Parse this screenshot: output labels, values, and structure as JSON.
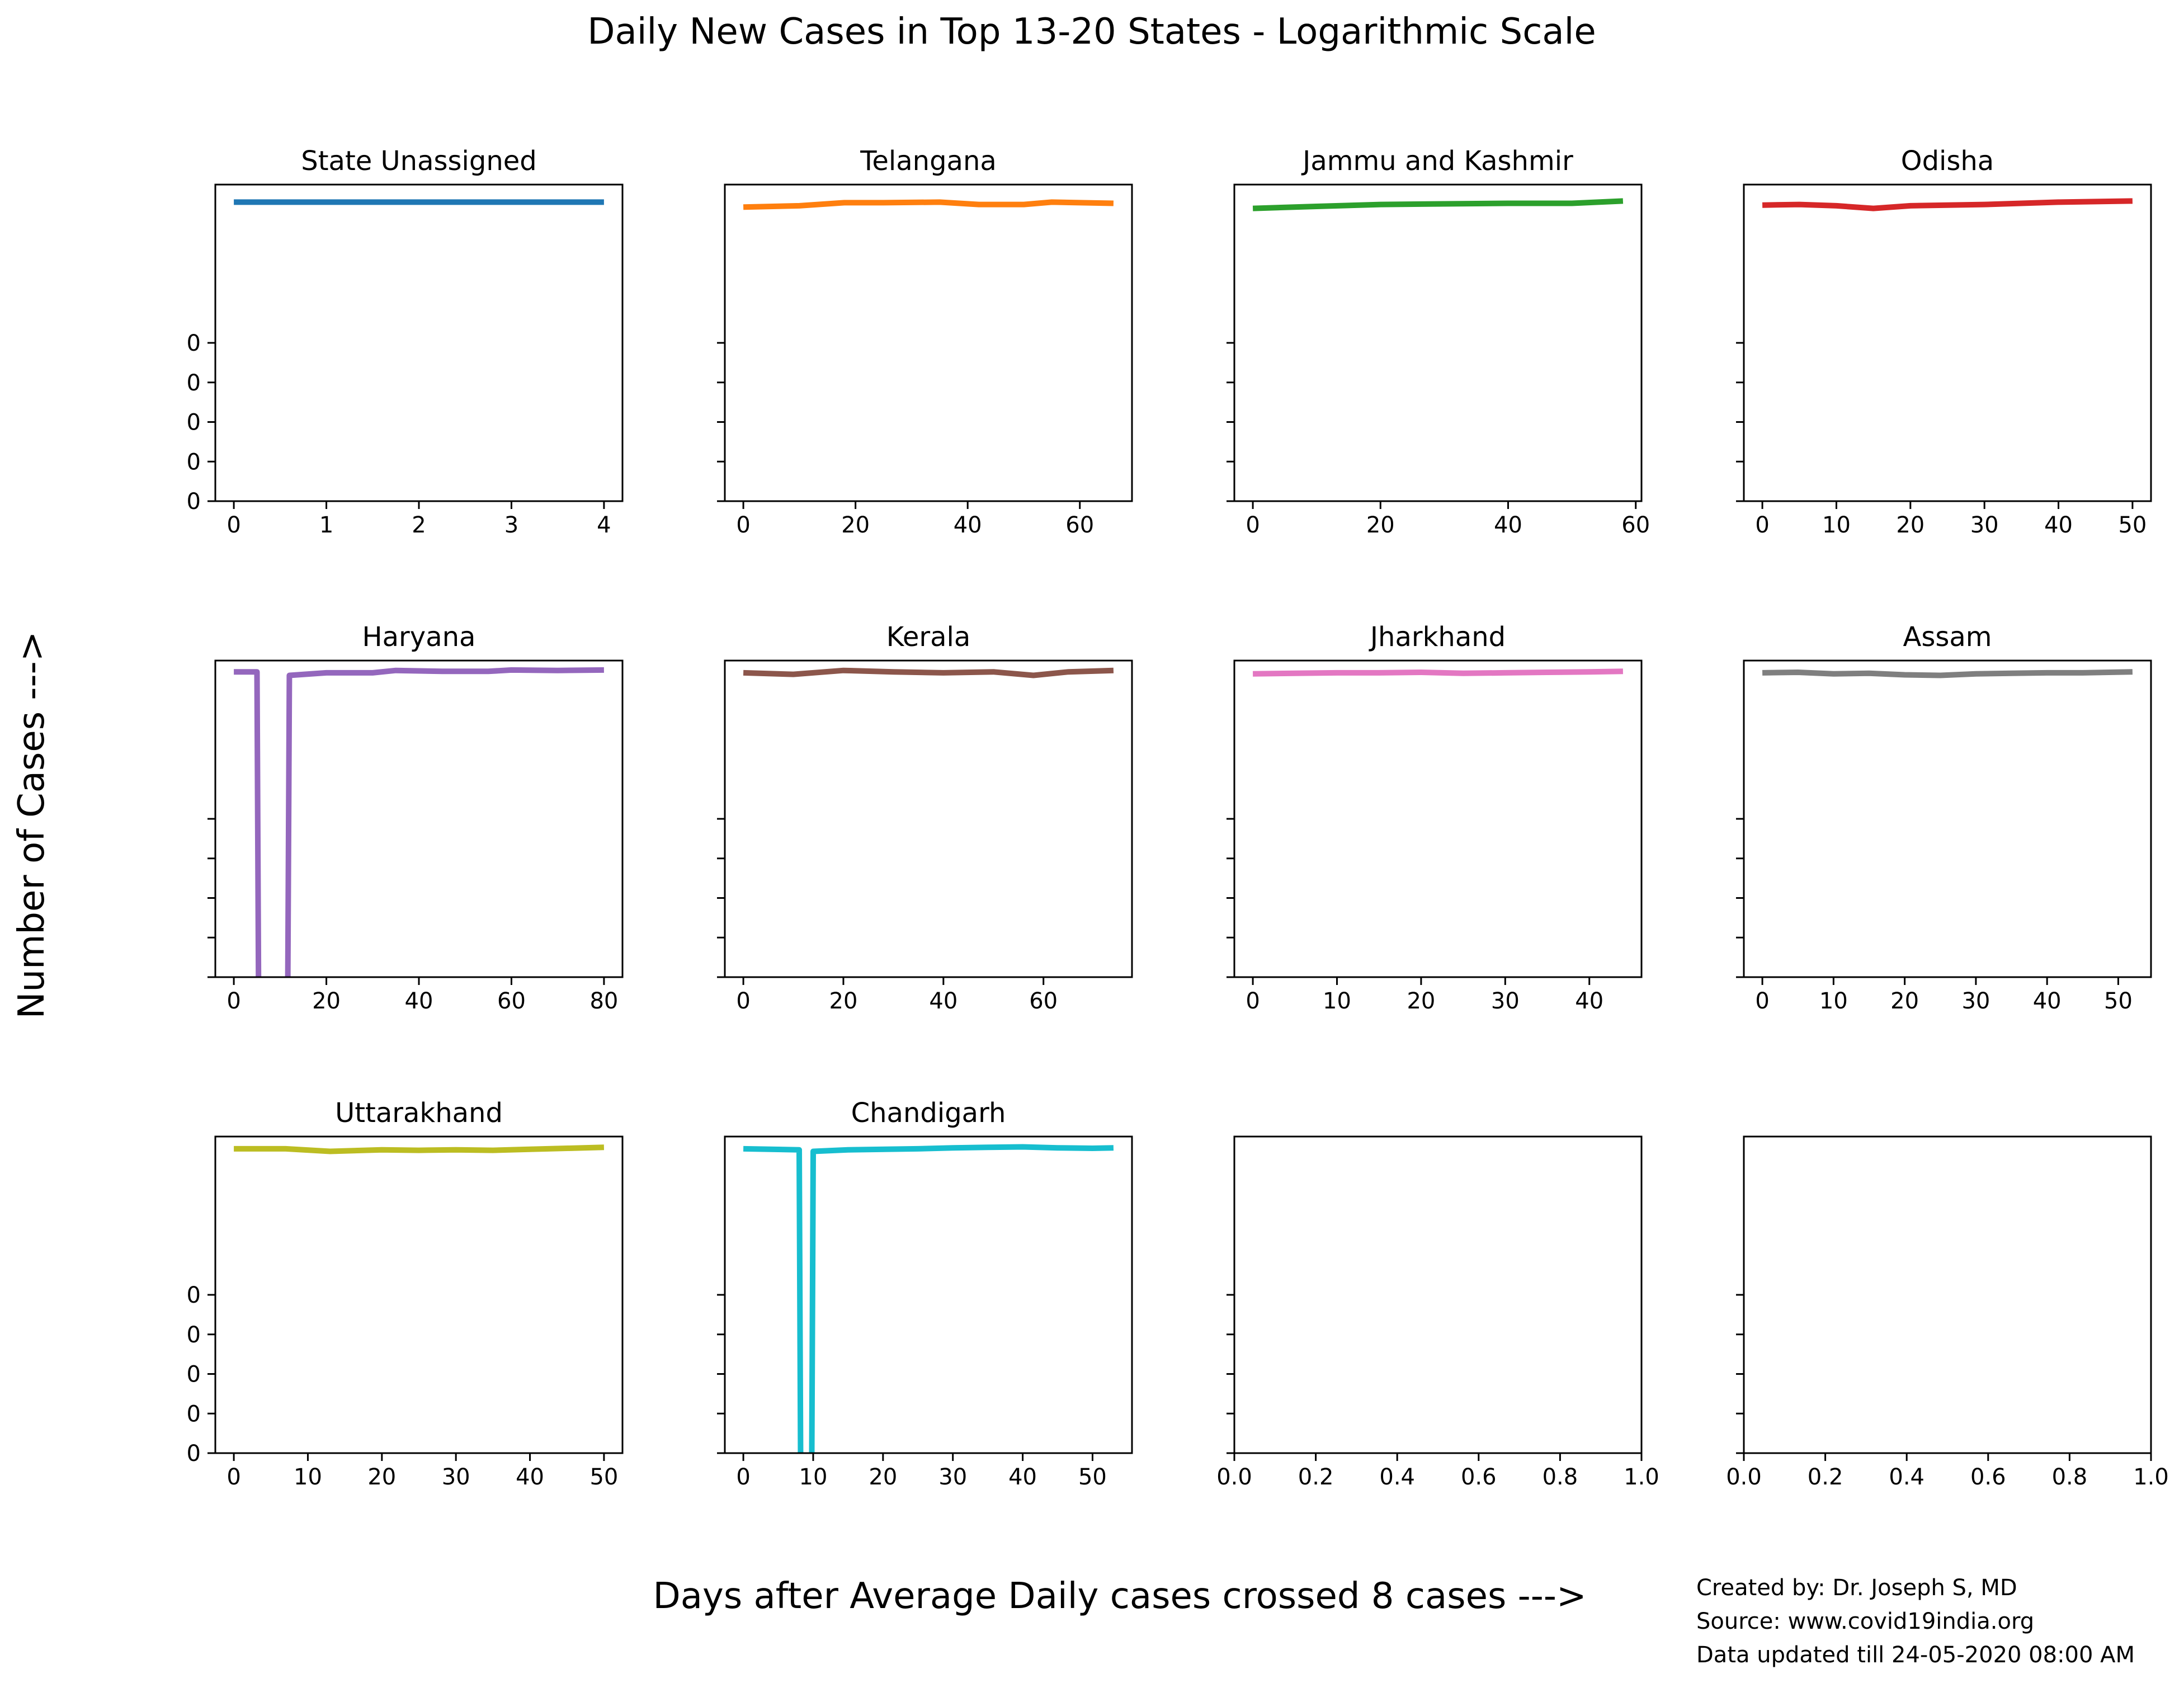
{
  "title": "Daily New Cases in Top 13-20 States - Logarithmic Scale",
  "xlabel": "Days after Average Daily cases crossed 8 cases --->",
  "ylabel": "Number of Cases --->",
  "credits": [
    "Created by: Dr. Joseph S, MD",
    "Source: www.covid19india.org",
    "Data updated till 24-05-2020 08:00 AM"
  ],
  "chart_data": [
    {
      "type": "line",
      "title": "State Unassigned",
      "color": "#1f77b4",
      "y_scale": "log",
      "shared_y": true,
      "ylim": [
        0.1,
        1000
      ],
      "y_tick_labels": [
        "0",
        "0",
        "0",
        "0",
        "0"
      ],
      "x_ticks": [
        0,
        1,
        2,
        3,
        4
      ],
      "xlim": [
        -0.2,
        4.2
      ],
      "x": [
        0,
        1,
        2,
        3,
        4
      ],
      "y": [
        600,
        600,
        600,
        600,
        600
      ]
    },
    {
      "type": "line",
      "title": "Telangana",
      "color": "#ff7f0e",
      "y_scale": "log",
      "shared_y": true,
      "ylim": [
        0.1,
        1000
      ],
      "x_ticks": [
        0,
        20,
        40,
        60
      ],
      "xlim": [
        -3.3,
        69.3
      ],
      "x": [
        0,
        10,
        18,
        25,
        35,
        42,
        50,
        55,
        66
      ],
      "y": [
        520,
        540,
        590,
        590,
        600,
        560,
        560,
        600,
        580
      ]
    },
    {
      "type": "line",
      "title": "Jammu and Kashmir",
      "color": "#2ca02c",
      "y_scale": "log",
      "shared_y": true,
      "ylim": [
        0.1,
        1000
      ],
      "x_ticks": [
        0,
        20,
        40,
        60
      ],
      "xlim": [
        -2.9,
        60.9
      ],
      "x": [
        0,
        10,
        20,
        30,
        40,
        50,
        58
      ],
      "y": [
        500,
        530,
        560,
        570,
        580,
        580,
        620
      ]
    },
    {
      "type": "line",
      "title": "Odisha",
      "color": "#d62728",
      "y_scale": "log",
      "shared_y": true,
      "ylim": [
        0.1,
        1000
      ],
      "x_ticks": [
        0,
        10,
        20,
        30,
        40,
        50
      ],
      "xlim": [
        -2.5,
        52.5
      ],
      "x": [
        0,
        5,
        10,
        15,
        20,
        30,
        40,
        50
      ],
      "y": [
        550,
        560,
        540,
        500,
        540,
        560,
        600,
        620
      ]
    },
    {
      "type": "line",
      "title": "Haryana",
      "color": "#9467bd",
      "y_scale": "log",
      "shared_y": true,
      "ylim": [
        0.1,
        1000
      ],
      "x_ticks": [
        0,
        20,
        40,
        60,
        80
      ],
      "xlim": [
        -4,
        84
      ],
      "x": [
        0,
        5,
        5.5,
        11.5,
        12,
        20,
        30,
        35,
        45,
        55,
        60,
        70,
        80
      ],
      "y": [
        720,
        720,
        0.001,
        0.001,
        650,
        700,
        700,
        750,
        730,
        730,
        760,
        750,
        760
      ]
    },
    {
      "type": "line",
      "title": "Kerala",
      "color": "#8c564b",
      "y_scale": "log",
      "shared_y": true,
      "ylim": [
        0.1,
        1000
      ],
      "x_ticks": [
        0,
        20,
        40,
        60
      ],
      "xlim": [
        -3.7,
        77.7
      ],
      "x": [
        0,
        10,
        20,
        30,
        40,
        50,
        58,
        65,
        74
      ],
      "y": [
        700,
        670,
        750,
        720,
        700,
        720,
        650,
        720,
        750
      ]
    },
    {
      "type": "line",
      "title": "Jharkhand",
      "color": "#e377c2",
      "y_scale": "log",
      "shared_y": true,
      "ylim": [
        0.1,
        1000
      ],
      "x_ticks": [
        0,
        10,
        20,
        30,
        40
      ],
      "xlim": [
        -2.2,
        46.2
      ],
      "x": [
        0,
        5,
        10,
        15,
        20,
        25,
        30,
        35,
        40,
        44
      ],
      "y": [
        680,
        690,
        700,
        700,
        710,
        690,
        700,
        710,
        720,
        730
      ]
    },
    {
      "type": "line",
      "title": "Assam",
      "color": "#7f7f7f",
      "y_scale": "log",
      "shared_y": true,
      "ylim": [
        0.1,
        1000
      ],
      "x_ticks": [
        0,
        10,
        20,
        30,
        40,
        50
      ],
      "xlim": [
        -2.6,
        54.6
      ],
      "x": [
        0,
        5,
        10,
        15,
        20,
        25,
        30,
        35,
        40,
        45,
        52
      ],
      "y": [
        700,
        710,
        680,
        690,
        660,
        650,
        680,
        690,
        700,
        700,
        720
      ]
    },
    {
      "type": "line",
      "title": "Uttarakhand",
      "color": "#bcbd22",
      "y_scale": "log",
      "shared_y": true,
      "ylim": [
        0.1,
        1000
      ],
      "y_tick_labels": [
        "0",
        "0",
        "0",
        "0",
        "0"
      ],
      "x_ticks": [
        0,
        10,
        20,
        30,
        40,
        50
      ],
      "xlim": [
        -2.5,
        52.5
      ],
      "x": [
        0,
        7,
        13,
        20,
        25,
        30,
        35,
        40,
        45,
        50
      ],
      "y": [
        700,
        700,
        650,
        680,
        670,
        680,
        670,
        690,
        710,
        730
      ]
    },
    {
      "type": "line",
      "title": "Chandigarh",
      "color": "#17becf",
      "y_scale": "log",
      "shared_y": true,
      "ylim": [
        0.1,
        1000
      ],
      "x_ticks": [
        0,
        10,
        20,
        30,
        40,
        50
      ],
      "xlim": [
        -2.65,
        55.65
      ],
      "x": [
        0,
        8,
        8.3,
        9.7,
        10,
        15,
        25,
        30,
        35,
        40,
        45,
        50,
        53
      ],
      "y": [
        700,
        680,
        0.001,
        0.001,
        650,
        680,
        700,
        720,
        730,
        740,
        720,
        710,
        720
      ]
    },
    {
      "type": "line",
      "title": "",
      "empty": true,
      "shared_y": true,
      "ylim": [
        0.1,
        1000
      ],
      "x_ticks": [
        0,
        0.2,
        0.4,
        0.6,
        0.8,
        1
      ],
      "x_tick_labels": [
        "0.0",
        "0.2",
        "0.4",
        "0.6",
        "0.8",
        "1.0"
      ],
      "xlim": [
        0,
        1
      ],
      "x": [],
      "y": []
    },
    {
      "type": "line",
      "title": "",
      "empty": true,
      "shared_y": true,
      "ylim": [
        0.1,
        1000
      ],
      "x_ticks": [
        0,
        0.2,
        0.4,
        0.6,
        0.8,
        1
      ],
      "x_tick_labels": [
        "0.0",
        "0.2",
        "0.4",
        "0.6",
        "0.8",
        "1.0"
      ],
      "xlim": [
        0,
        1
      ],
      "x": [],
      "y": []
    }
  ]
}
